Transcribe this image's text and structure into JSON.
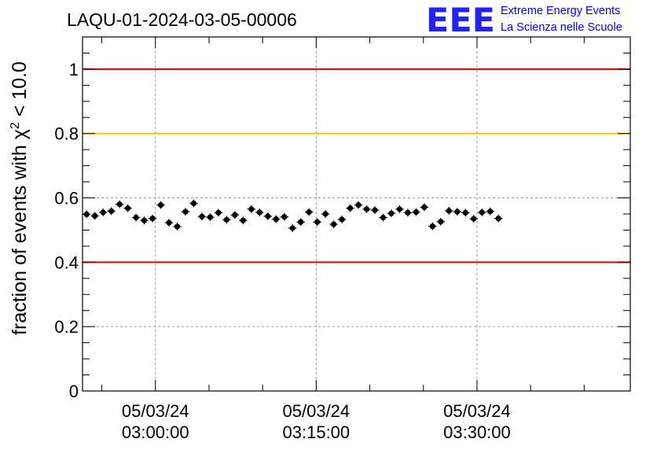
{
  "chart_data": {
    "type": "scatter",
    "title": "LAQU-01-2024-03-05-00006",
    "ylabel_parts": {
      "prefix": "fraction of events with ",
      "symbol": "χ",
      "superscript": "2",
      "suffix": " < 10.0"
    },
    "xlabel": "",
    "ylim": [
      0,
      1.1
    ],
    "yticks": [
      {
        "value": 0,
        "label": "0"
      },
      {
        "value": 0.2,
        "label": "0.2"
      },
      {
        "value": 0.4,
        "label": "0.4"
      },
      {
        "value": 0.6,
        "label": "0.6"
      },
      {
        "value": 0.8,
        "label": "0.8"
      },
      {
        "value": 1,
        "label": "1"
      }
    ],
    "xlim_minutes": [
      -6.8,
      44.3
    ],
    "xticks": [
      {
        "minute": 0,
        "date": "05/03/24",
        "time": "03:00:00"
      },
      {
        "minute": 15,
        "date": "05/03/24",
        "time": "03:15:00"
      },
      {
        "minute": 30,
        "date": "05/03/24",
        "time": "03:30:00"
      }
    ],
    "grid": true,
    "reference_lines": [
      {
        "value": 1.0,
        "color": "#dd0000"
      },
      {
        "value": 0.8,
        "color": "#ffc000"
      },
      {
        "value": 0.4,
        "color": "#dd0000"
      }
    ],
    "marker_color": "#000000",
    "x_step_minutes": 0.7683,
    "y_error": 0.012,
    "values": [
      0.549,
      0.544,
      0.555,
      0.559,
      0.58,
      0.568,
      0.539,
      0.53,
      0.536,
      0.578,
      0.523,
      0.511,
      0.557,
      0.583,
      0.542,
      0.54,
      0.554,
      0.532,
      0.547,
      0.53,
      0.565,
      0.555,
      0.543,
      0.534,
      0.541,
      0.506,
      0.525,
      0.556,
      0.525,
      0.55,
      0.518,
      0.533,
      0.568,
      0.578,
      0.565,
      0.562,
      0.539,
      0.552,
      0.565,
      0.554,
      0.556,
      0.571,
      0.512,
      0.526,
      0.56,
      0.557,
      0.554,
      0.535,
      0.555,
      0.558,
      0.536
    ]
  },
  "logo": {
    "mark": "EEE",
    "line1": "Extreme Energy Events",
    "line2": "La Scienza nelle Scuole"
  }
}
